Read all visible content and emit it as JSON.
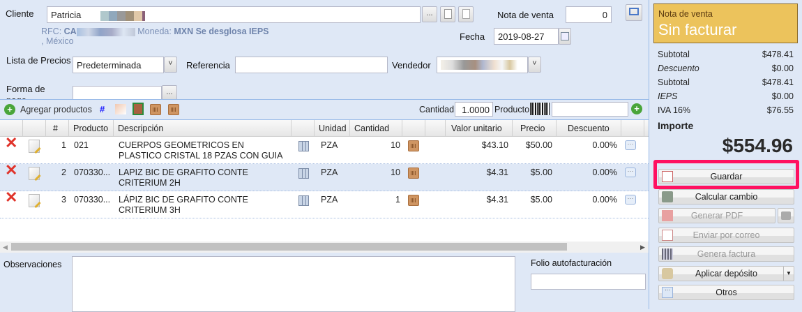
{
  "form": {
    "cliente_label": "Cliente",
    "cliente_value": "Patricia",
    "rfc_label": "RFC:",
    "rfc_value": "CA",
    "moneda_label": "Moneda:",
    "moneda_value": "MXN Se desglosa IEPS",
    "location": ", México",
    "nota_label": "Nota de venta",
    "nota_value": "0",
    "fecha_label": "Fecha",
    "fecha_value": "2019-08-27",
    "lista_label": "Lista de Precios",
    "lista_value": "Predeterminada",
    "referencia_label": "Referencia",
    "referencia_value": "",
    "vendedor_label": "Vendedor",
    "vendedor_value": "",
    "forma_label": "Forma de pago",
    "forma_value": "",
    "ellipsis": "..."
  },
  "toolbar": {
    "add_label": "Agregar productos",
    "hash": "#",
    "cantidad_label": "Cantidad",
    "cantidad_value": "1.0000",
    "producto_label": "Producto",
    "producto_value": ""
  },
  "grid": {
    "columns": {
      "num": "#",
      "producto": "Producto",
      "descripcion": "Descripción",
      "unidad": "Unidad",
      "cantidad": "Cantidad",
      "valor": "Valor unitario",
      "precio": "Precio",
      "descuento": "Descuento"
    },
    "rows": [
      {
        "num": "1",
        "producto": "021",
        "descripcion": "CUERPOS GEOMETRICOS EN PLASTICO CRISTAL 18 PZAS CON GUIA",
        "unidad": "PZA",
        "cantidad": "10",
        "valor": "$43.10",
        "precio": "$50.00",
        "descuento": "0.00%",
        "more": "···"
      },
      {
        "num": "2",
        "producto": "070330...",
        "descripcion": "LAPIZ BIC DE GRAFITO CONTE CRITERIUM 2H",
        "unidad": "PZA",
        "cantidad": "10",
        "valor": "$4.31",
        "precio": "$5.00",
        "descuento": "0.00%",
        "more": "···"
      },
      {
        "num": "3",
        "producto": "070330...",
        "descripcion": "LÁPIZ BIC DE GRAFITO CONTE CRITERIUM 3H",
        "unidad": "PZA",
        "cantidad": "1",
        "valor": "$4.31",
        "precio": "$5.00",
        "descuento": "0.00%",
        "more": "···"
      }
    ]
  },
  "bottom": {
    "observaciones_label": "Observaciones",
    "folio_label": "Folio autofacturación"
  },
  "sidebar": {
    "status_small": "Nota de venta",
    "status_big": "Sin facturar",
    "status_color": "#ecc35c",
    "totals": [
      {
        "label": "Subtotal",
        "value": "$478.41"
      },
      {
        "label": "Descuento",
        "value": "$0.00"
      },
      {
        "label": "Subtotal",
        "value": "$478.41"
      },
      {
        "label": "IEPS",
        "value": "$0.00"
      },
      {
        "label": "IVA 16%",
        "value": "$76.55"
      }
    ],
    "importe_label": "Importe",
    "importe_value": "$554.96",
    "buttons": {
      "guardar": "Guardar",
      "calcular": "Calcular cambio",
      "pdf": "Generar PDF",
      "correo": "Enviar por correo",
      "factura": "Genera factura",
      "deposito": "Aplicar depósito",
      "otros": "Otros"
    },
    "highlight_color": "#ff1060"
  }
}
